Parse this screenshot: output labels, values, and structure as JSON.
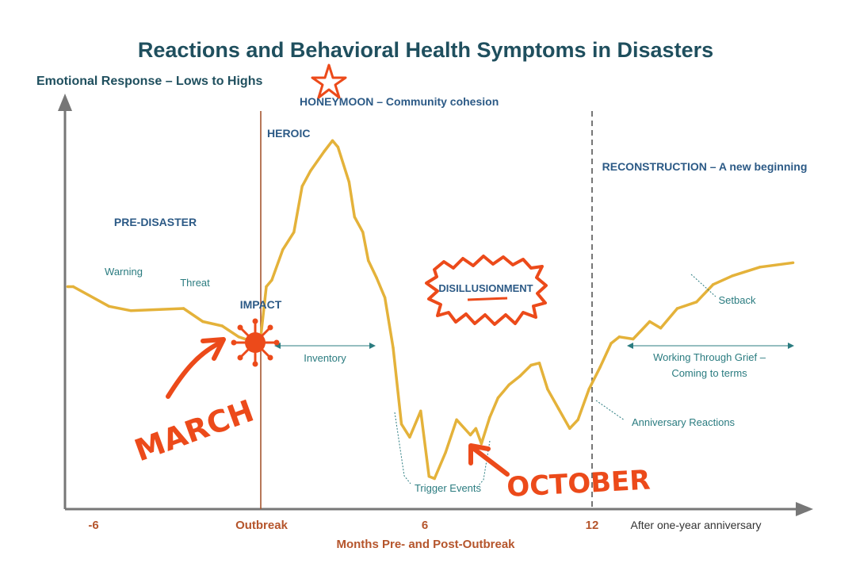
{
  "chart_data": {
    "type": "line",
    "title": "Reactions and Behavioral Health Symptoms in Disasters",
    "ylabel": "Emotional Response – Lows to Highs",
    "xlabel": "Months Pre- and Post-Outbreak",
    "x_ticks": [
      "-6",
      "Outbreak",
      "6",
      "12",
      "After one-year anniversary"
    ],
    "series": [
      {
        "color": "#e4b23a",
        "x": [
          -7,
          -6.8,
          -5.5,
          -4.7,
          -2.8,
          -2.1,
          -1.4,
          -0.8,
          -0.1,
          0,
          0.2,
          0.4,
          0.8,
          1.2,
          1.5,
          1.8,
          2.3,
          2.6,
          2.8,
          3.2,
          3.4,
          3.7,
          3.9,
          4.2,
          4.5,
          4.8,
          5.1,
          5.4,
          5.8,
          6.1,
          6.3,
          6.7,
          7.1,
          7.6,
          7.8,
          8.0,
          8.3,
          8.6,
          9.0,
          9.4,
          9.8,
          10.1,
          10.4,
          10.8,
          11.2,
          11.5,
          11.9,
          12.3,
          12.7,
          13.0,
          13.5,
          14.1,
          14.5,
          15.1,
          15.8,
          16.4,
          17.1,
          18.1,
          19.3
        ],
        "y": [
          10.2,
          10.2,
          9.3,
          9.1,
          9.2,
          8.6,
          8.4,
          7.9,
          7.6,
          7.9,
          10.2,
          10.5,
          11.9,
          12.7,
          14.8,
          15.5,
          16.4,
          16.9,
          16.6,
          15.0,
          13.4,
          12.7,
          11.4,
          10.6,
          9.7,
          7.4,
          3.9,
          3.3,
          4.5,
          1.5,
          1.4,
          2.6,
          4.1,
          3.4,
          3.7,
          3.0,
          4.2,
          5.1,
          5.7,
          6.1,
          6.6,
          6.7,
          5.5,
          4.6,
          3.7,
          4.1,
          5.5,
          6.5,
          7.6,
          7.9,
          7.8,
          8.6,
          8.3,
          9.2,
          9.5,
          10.3,
          10.7,
          11.1,
          11.3
        ]
      }
    ],
    "xlim": [
      -7.5,
      20.5
    ],
    "ylim": [
      0,
      18.7
    ],
    "grid": false,
    "markers": {
      "outbreak_line_x": 0,
      "anniversary_line_x": 12
    }
  },
  "labels": {
    "pre_disaster": "PRE-DISASTER",
    "warning": "Warning",
    "threat": "Threat",
    "impact": "IMPACT",
    "heroic": "HEROIC",
    "honeymoon": "HONEYMOON – Community cohesion",
    "inventory": "Inventory",
    "disillusionment": "DISILLUSIONMENT",
    "trigger_events": "Trigger Events",
    "reconstruction": "RECONSTRUCTION – A new beginning",
    "setback": "Setback",
    "grief_line1": "Working Through Grief –",
    "grief_line2": "Coming to terms",
    "anniversary_reactions": "Anniversary Reactions"
  },
  "handwriting": {
    "march": "MARCH",
    "october": "OCTOBER"
  },
  "colors": {
    "line": "#e4b23a",
    "axis": "#777777",
    "outbreak_line": "#a5552f",
    "title": "#1f4f5e",
    "phase_text": "#2c5a86",
    "note_text": "#2b7c80",
    "tick_text": "#b5552c",
    "scrawl": "#ec4a1a"
  }
}
